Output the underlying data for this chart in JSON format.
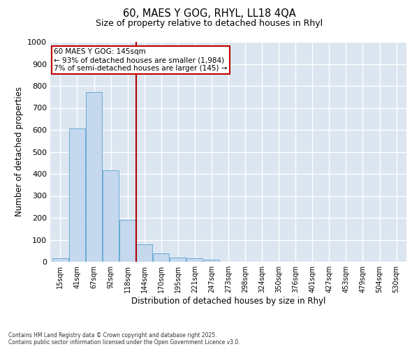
{
  "title1": "60, MAES Y GOG, RHYL, LL18 4QA",
  "title2": "Size of property relative to detached houses in Rhyl",
  "xlabel": "Distribution of detached houses by size in Rhyl",
  "ylabel": "Number of detached properties",
  "categories": [
    "15sqm",
    "41sqm",
    "67sqm",
    "92sqm",
    "118sqm",
    "144sqm",
    "170sqm",
    "195sqm",
    "221sqm",
    "247sqm",
    "273sqm",
    "298sqm",
    "324sqm",
    "350sqm",
    "376sqm",
    "401sqm",
    "427sqm",
    "453sqm",
    "479sqm",
    "504sqm",
    "530sqm"
  ],
  "values": [
    15,
    605,
    770,
    415,
    190,
    78,
    38,
    20,
    15,
    10,
    0,
    0,
    0,
    0,
    0,
    0,
    0,
    0,
    0,
    0,
    0
  ],
  "bar_color": "#c5d8ee",
  "bar_edge_color": "#6aaad4",
  "background_color": "#dce6f1",
  "grid_color": "#ffffff",
  "vline_color": "#b00000",
  "annotation_title": "60 MAES Y GOG: 145sqm",
  "annotation_line1": "← 93% of detached houses are smaller (1,984)",
  "annotation_line2": "7% of semi-detached houses are larger (145) →",
  "annotation_box_color": "#c00000",
  "footer1": "Contains HM Land Registry data © Crown copyright and database right 2025.",
  "footer2": "Contains public sector information licensed under the Open Government Licence v3.0.",
  "ylim": [
    0,
    1000
  ],
  "yticks": [
    0,
    100,
    200,
    300,
    400,
    500,
    600,
    700,
    800,
    900,
    1000
  ]
}
